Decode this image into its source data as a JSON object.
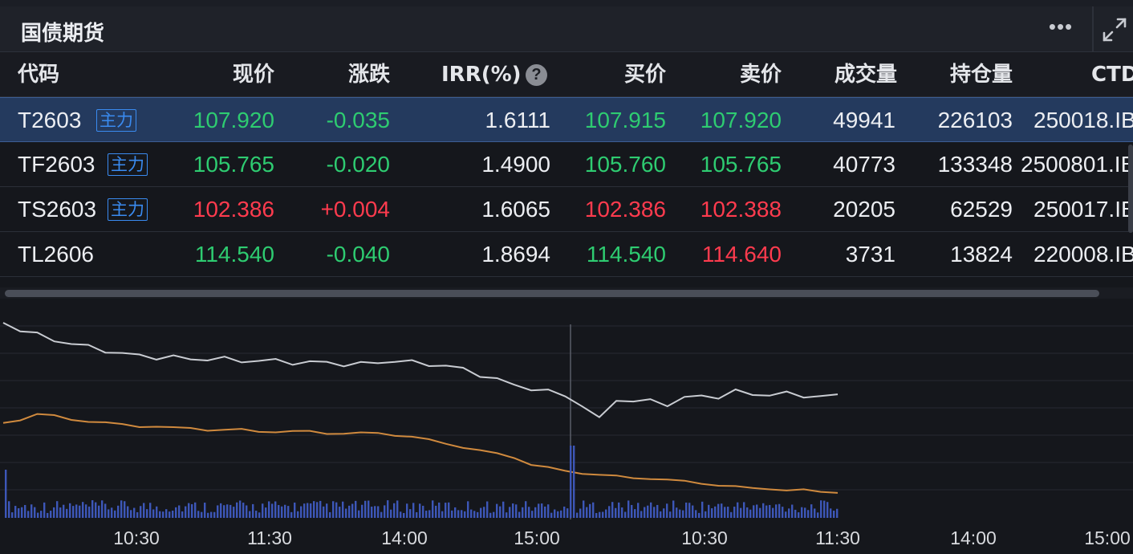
{
  "panel": {
    "title": "国债期货",
    "more_icon": "more-horizontal-icon",
    "expand_icon": "expand-icon"
  },
  "table": {
    "columns": {
      "code": "代码",
      "price": "现价",
      "change": "涨跌",
      "irr": "IRR(%)",
      "irr_help": "?",
      "bid": "买价",
      "ask": "卖价",
      "volume": "成交量",
      "open_interest": "持仓量",
      "ctd": "CTD"
    },
    "rows": [
      {
        "code": "T2603",
        "tag": "主力",
        "price": "107.920",
        "change": "-0.035",
        "irr": "1.6111",
        "bid": "107.915",
        "ask": "107.920",
        "volume": "49941",
        "open_interest": "226103",
        "ctd": "250018.IB"
      },
      {
        "code": "TF2603",
        "tag": "主力",
        "price": "105.765",
        "change": "-0.020",
        "irr": "1.4900",
        "bid": "105.760",
        "ask": "105.765",
        "volume": "40773",
        "open_interest": "133348",
        "ctd": "2500801.IB"
      },
      {
        "code": "TS2603",
        "tag": "主力",
        "price": "102.386",
        "change": "+0.004",
        "irr": "1.6065",
        "bid": "102.386",
        "ask": "102.388",
        "volume": "20205",
        "open_interest": "62529",
        "ctd": "250017.IB"
      },
      {
        "code": "TL2606",
        "tag": "",
        "price": "114.540",
        "change": "-0.040",
        "irr": "1.8694",
        "bid": "114.540",
        "ask": "114.640",
        "volume": "3731",
        "open_interest": "13824",
        "ctd": "220008.IB"
      }
    ],
    "colors": {
      "up": "#ff3b4e",
      "down": "#2ecc71",
      "tag": "#3a8bf0",
      "selected_row": "#243a5e"
    }
  },
  "chart_data": {
    "type": "line",
    "x_ticks": [
      "10:30",
      "11:30",
      "14:00",
      "15:00",
      "10:30",
      "11:30",
      "14:00",
      "15:00"
    ],
    "sessions": 2,
    "series": [
      {
        "color": "#c9ccd2",
        "values": [
          100,
          96,
          93,
          90,
          88,
          86,
          84,
          82,
          81,
          80,
          80,
          79,
          79,
          79,
          78,
          78,
          78,
          77,
          77,
          77,
          76,
          76,
          77,
          78,
          77,
          76,
          75,
          73,
          70,
          67,
          64,
          62,
          60,
          58,
          52,
          44,
          56,
          54,
          55,
          53,
          56,
          58,
          57,
          60,
          59,
          58,
          59,
          58,
          57,
          58
        ]
      },
      {
        "color": "#d08a3e",
        "values": [
          42,
          44,
          47,
          46,
          44,
          43,
          42,
          41,
          40,
          40,
          39,
          39,
          38,
          38,
          38,
          37,
          37,
          37,
          37,
          36,
          36,
          36,
          36,
          35,
          34,
          32,
          30,
          28,
          26,
          24,
          22,
          18,
          16,
          14,
          13,
          12,
          11,
          10,
          10,
          9,
          8,
          7,
          6,
          5,
          4,
          4,
          3,
          3,
          2,
          2
        ]
      }
    ],
    "volume_color": "#3d57b8",
    "grid": true
  }
}
